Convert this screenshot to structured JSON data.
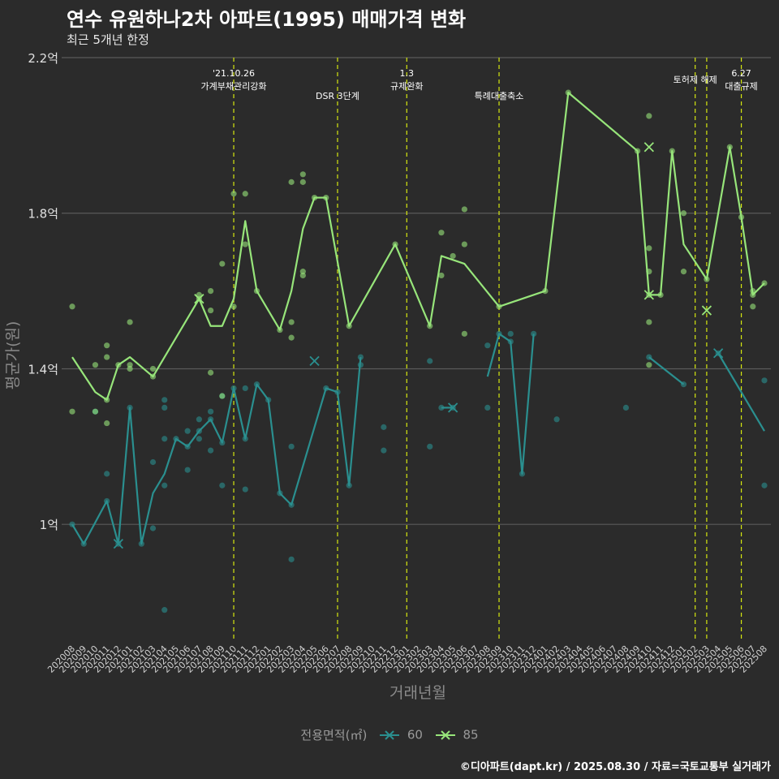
{
  "title": "연수 유원하나2차 아파트(1995) 매매가격 변화",
  "subtitle": "최근 5개년 한정",
  "caption": "©디아파트(dapt.kr) / 2025.08.30 / 자료=국토교통부 실거래가",
  "legend": {
    "title": "전용면적(㎡)",
    "items": [
      "60",
      "85"
    ]
  },
  "colors": {
    "background": "#2b2b2b",
    "grid": "#5a5a5a",
    "series60": "#2a8f8f",
    "series85": "#97e57a",
    "event_line": "#d6e80f"
  },
  "chart_data": {
    "type": "line",
    "xlabel": "거래년월",
    "ylabel": "평균가(원)",
    "ylim": [
      0.7,
      2.2
    ],
    "y_ticks": [
      {
        "value": 1.0,
        "label": "1억"
      },
      {
        "value": 1.4,
        "label": "1.4억"
      },
      {
        "value": 1.8,
        "label": "1.8억"
      },
      {
        "value": 2.2,
        "label": "2.2억"
      }
    ],
    "x_ticks": [
      "202008",
      "202009",
      "202010",
      "202011",
      "202012",
      "202101",
      "202102",
      "202103",
      "202104",
      "202105",
      "202106",
      "202107",
      "202108",
      "202109",
      "202110",
      "202111",
      "202112",
      "202201",
      "202202",
      "202203",
      "202204",
      "202205",
      "202206",
      "202207",
      "202208",
      "202209",
      "202210",
      "202211",
      "202212",
      "202301",
      "202302",
      "202303",
      "202304",
      "202305",
      "202306",
      "202307",
      "202308",
      "202309",
      "202310",
      "202311",
      "202312",
      "202401",
      "202402",
      "202403",
      "202404",
      "202405",
      "202406",
      "202407",
      "202408",
      "202409",
      "202410",
      "202411",
      "202412",
      "202501",
      "202502",
      "202503",
      "202504",
      "202505",
      "202506",
      "202507",
      "202508"
    ],
    "events": [
      {
        "x": "202110",
        "lines": [
          "'21.10.26",
          "가계부채관리강화"
        ],
        "row": 1
      },
      {
        "x": "202207",
        "lines": [
          "DSR 3단계"
        ],
        "row": 2
      },
      {
        "x": "202301",
        "lines": [
          "1.3",
          "규제완화"
        ],
        "row": 1
      },
      {
        "x": "202309",
        "lines": [
          "특례대출축소"
        ],
        "row": 2
      },
      {
        "x": "202502",
        "lines": [
          "토허제 해제"
        ],
        "row": 0
      },
      {
        "x": "202503",
        "lines": [],
        "row": 0
      },
      {
        "x": "202506",
        "lines": [
          "6.27",
          "대출규제"
        ],
        "row": 1
      }
    ],
    "series": [
      {
        "name": "60",
        "line": [
          [
            "202008",
            1.0
          ],
          [
            "202009",
            0.95
          ],
          [
            "202011",
            1.06
          ],
          [
            "202012",
            0.95
          ],
          [
            "202101",
            1.3
          ],
          [
            "202102",
            0.95
          ],
          [
            "202103",
            1.08
          ],
          [
            "202104",
            1.13
          ],
          [
            "202105",
            1.22
          ],
          [
            "202106",
            1.2
          ],
          [
            "202107",
            1.24
          ],
          [
            "202108",
            1.27
          ],
          [
            "202109",
            1.21
          ],
          [
            "202110",
            1.35
          ],
          [
            "202111",
            1.22
          ],
          [
            "202112",
            1.36
          ],
          [
            "202201",
            1.32
          ],
          [
            "202202",
            1.08
          ],
          [
            "202203",
            1.05
          ],
          [
            "202206",
            1.35
          ],
          [
            "202207",
            1.34
          ],
          [
            "202208",
            1.1
          ],
          [
            "202209",
            1.43
          ],
          null,
          [
            "202304",
            1.3
          ],
          [
            "202305",
            1.3
          ],
          null,
          [
            "202308",
            1.38
          ],
          [
            "202309",
            1.49
          ],
          [
            "202310",
            1.47
          ],
          [
            "202311",
            1.13
          ],
          [
            "202312",
            1.49
          ],
          null,
          [
            "202410",
            1.43
          ],
          [
            "202501",
            1.36
          ],
          null,
          [
            "202504",
            1.44
          ],
          [
            "202508",
            1.24
          ]
        ],
        "points": [
          [
            "202008",
            1.0
          ],
          [
            "202009",
            0.95
          ],
          [
            "202010",
            1.29
          ],
          [
            "202011",
            1.06
          ],
          [
            "202011",
            1.13
          ],
          [
            "202012",
            0.95
          ],
          [
            "202101",
            1.3
          ],
          [
            "202102",
            0.95
          ],
          [
            "202103",
            0.99
          ],
          [
            "202103",
            1.16
          ],
          [
            "202104",
            1.1
          ],
          [
            "202104",
            1.3
          ],
          [
            "202104",
            1.32
          ],
          [
            "202104",
            0.78
          ],
          [
            "202104",
            1.22
          ],
          [
            "202105",
            1.22
          ],
          [
            "202106",
            1.2
          ],
          [
            "202106",
            1.14
          ],
          [
            "202106",
            1.24
          ],
          [
            "202107",
            1.24
          ],
          [
            "202107",
            1.22
          ],
          [
            "202107",
            1.27
          ],
          [
            "202108",
            1.27
          ],
          [
            "202108",
            1.19
          ],
          [
            "202108",
            1.29
          ],
          [
            "202109",
            1.21
          ],
          [
            "202109",
            1.1
          ],
          [
            "202109",
            1.33
          ],
          [
            "202110",
            1.35
          ],
          [
            "202111",
            1.22
          ],
          [
            "202111",
            1.09
          ],
          [
            "202111",
            1.35
          ],
          [
            "202112",
            1.36
          ],
          [
            "202201",
            1.32
          ],
          [
            "202202",
            1.08
          ],
          [
            "202203",
            1.05
          ],
          [
            "202203",
            1.2
          ],
          [
            "202203",
            0.91
          ],
          [
            "202206",
            1.35
          ],
          [
            "202207",
            1.34
          ],
          [
            "202208",
            1.1
          ],
          [
            "202209",
            1.43
          ],
          [
            "202209",
            1.41
          ],
          [
            "202211",
            1.25
          ],
          [
            "202211",
            1.19
          ],
          [
            "202303",
            1.2
          ],
          [
            "202303",
            1.42
          ],
          [
            "202304",
            1.3
          ],
          [
            "202305",
            1.3
          ],
          [
            "202308",
            1.3
          ],
          [
            "202308",
            1.46
          ],
          [
            "202309",
            1.49
          ],
          [
            "202310",
            1.47
          ],
          [
            "202310",
            1.49
          ],
          [
            "202311",
            1.13
          ],
          [
            "202312",
            1.49
          ],
          [
            "202402",
            1.27
          ],
          [
            "202408",
            1.3
          ],
          [
            "202410",
            1.43
          ],
          [
            "202501",
            1.36
          ],
          [
            "202504",
            1.44
          ],
          [
            "202508",
            1.1
          ],
          [
            "202508",
            1.37
          ]
        ],
        "crosses": [
          [
            "202012",
            0.95
          ],
          [
            "202205",
            1.42
          ],
          [
            "202305",
            1.3
          ],
          [
            "202504",
            1.44
          ]
        ]
      },
      {
        "name": "85",
        "line": [
          [
            "202008",
            1.43
          ],
          [
            "202010",
            1.34
          ],
          [
            "202011",
            1.32
          ],
          [
            "202012",
            1.41
          ],
          [
            "202101",
            1.43
          ],
          [
            "202103",
            1.38
          ],
          [
            "202107",
            1.58
          ],
          [
            "202108",
            1.51
          ],
          [
            "202109",
            1.51
          ],
          [
            "202110",
            1.58
          ],
          [
            "202111",
            1.78
          ],
          [
            "202112",
            1.6
          ],
          [
            "202202",
            1.5
          ],
          [
            "202203",
            1.6
          ],
          [
            "202204",
            1.76
          ],
          [
            "202205",
            1.84
          ],
          [
            "202206",
            1.84
          ],
          [
            "202208",
            1.51
          ],
          [
            "202212",
            1.72
          ],
          [
            "202303",
            1.51
          ],
          [
            "202304",
            1.69
          ],
          [
            "202306",
            1.67
          ],
          [
            "202309",
            1.56
          ],
          [
            "202401",
            1.6
          ],
          [
            "202403",
            2.11
          ],
          [
            "202409",
            1.96
          ],
          [
            "202410",
            1.59
          ],
          [
            "202411",
            1.59
          ],
          [
            "202412",
            1.96
          ],
          [
            "202501",
            1.72
          ],
          [
            "202503",
            1.63
          ],
          [
            "202505",
            1.97
          ],
          [
            "202506",
            1.79
          ],
          [
            "202507",
            1.59
          ],
          [
            "202508",
            1.62
          ]
        ],
        "points": [
          [
            "202008",
            1.56
          ],
          [
            "202008",
            1.29
          ],
          [
            "202010",
            1.29
          ],
          [
            "202010",
            1.41
          ],
          [
            "202011",
            1.43
          ],
          [
            "202011",
            1.46
          ],
          [
            "202011",
            1.26
          ],
          [
            "202011",
            1.32
          ],
          [
            "202012",
            1.41
          ],
          [
            "202101",
            1.4
          ],
          [
            "202101",
            1.52
          ],
          [
            "202101",
            1.41
          ],
          [
            "202103",
            1.38
          ],
          [
            "202103",
            1.4
          ],
          [
            "202107",
            1.58
          ],
          [
            "202107",
            1.59
          ],
          [
            "202108",
            1.6
          ],
          [
            "202108",
            1.55
          ],
          [
            "202108",
            1.39
          ],
          [
            "202109",
            1.33
          ],
          [
            "202109",
            1.67
          ],
          [
            "202110",
            1.85
          ],
          [
            "202110",
            1.56
          ],
          [
            "202111",
            1.85
          ],
          [
            "202111",
            1.72
          ],
          [
            "202112",
            1.6
          ],
          [
            "202202",
            1.5
          ],
          [
            "202203",
            1.52
          ],
          [
            "202203",
            1.48
          ],
          [
            "202203",
            1.88
          ],
          [
            "202204",
            1.88
          ],
          [
            "202204",
            1.9
          ],
          [
            "202204",
            1.64
          ],
          [
            "202204",
            1.65
          ],
          [
            "202205",
            1.84
          ],
          [
            "202206",
            1.84
          ],
          [
            "202208",
            1.51
          ],
          [
            "202212",
            1.72
          ],
          [
            "202303",
            1.51
          ],
          [
            "202304",
            1.64
          ],
          [
            "202304",
            1.75
          ],
          [
            "202305",
            1.69
          ],
          [
            "202306",
            1.81
          ],
          [
            "202306",
            1.72
          ],
          [
            "202306",
            1.49
          ],
          [
            "202309",
            1.56
          ],
          [
            "202401",
            1.6
          ],
          [
            "202403",
            2.11
          ],
          [
            "202409",
            1.96
          ],
          [
            "202410",
            1.59
          ],
          [
            "202410",
            2.05
          ],
          [
            "202410",
            1.71
          ],
          [
            "202410",
            1.65
          ],
          [
            "202410",
            1.41
          ],
          [
            "202410",
            1.52
          ],
          [
            "202411",
            1.59
          ],
          [
            "202412",
            1.96
          ],
          [
            "202501",
            1.8
          ],
          [
            "202501",
            1.65
          ],
          [
            "202503",
            1.63
          ],
          [
            "202505",
            1.97
          ],
          [
            "202506",
            1.79
          ],
          [
            "202507",
            1.59
          ],
          [
            "202507",
            1.6
          ],
          [
            "202507",
            1.56
          ],
          [
            "202508",
            1.62
          ]
        ],
        "crosses": [
          [
            "202107",
            1.58
          ],
          [
            "202410",
            1.59
          ],
          [
            "202410",
            1.97
          ],
          [
            "202503",
            1.55
          ]
        ]
      }
    ]
  }
}
